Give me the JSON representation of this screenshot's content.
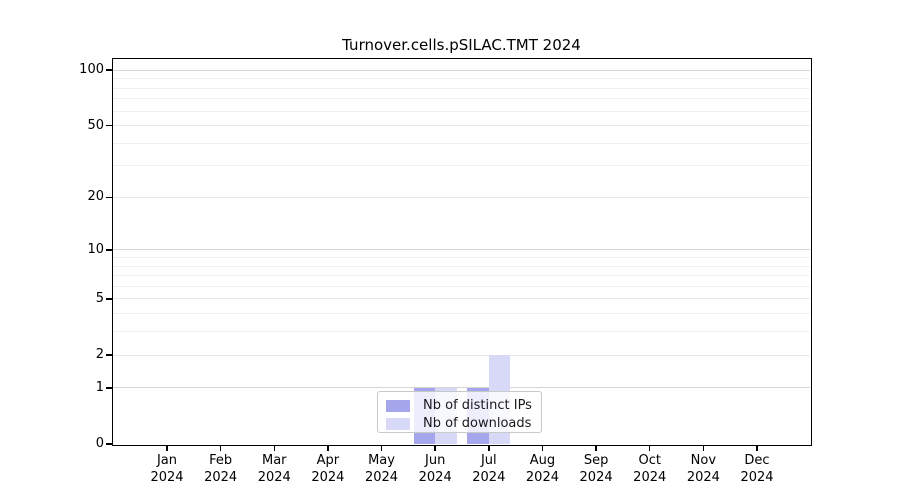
{
  "chart_data": {
    "type": "bar",
    "title": "Turnover.cells.pSILAC.TMT 2024",
    "categories": [
      {
        "month": "Jan",
        "year": "2024"
      },
      {
        "month": "Feb",
        "year": "2024"
      },
      {
        "month": "Mar",
        "year": "2024"
      },
      {
        "month": "Apr",
        "year": "2024"
      },
      {
        "month": "May",
        "year": "2024"
      },
      {
        "month": "Jun",
        "year": "2024"
      },
      {
        "month": "Jul",
        "year": "2024"
      },
      {
        "month": "Aug",
        "year": "2024"
      },
      {
        "month": "Sep",
        "year": "2024"
      },
      {
        "month": "Oct",
        "year": "2024"
      },
      {
        "month": "Nov",
        "year": "2024"
      },
      {
        "month": "Dec",
        "year": "2024"
      }
    ],
    "series": [
      {
        "name": "Nb of distinct IPs",
        "key": "distinct-ips",
        "color": "#a6a6ed",
        "values": [
          0,
          0,
          0,
          0,
          0,
          1,
          1,
          0,
          0,
          0,
          0,
          0
        ]
      },
      {
        "name": "Nb of downloads",
        "key": "downloads",
        "color": "#d8d8f7",
        "values": [
          0,
          0,
          0,
          0,
          0,
          1,
          2,
          0,
          0,
          0,
          0,
          0
        ]
      }
    ],
    "y_scale": "log1p",
    "ylim": [
      0,
      115
    ],
    "y_major_ticks": [
      0,
      1,
      2,
      5,
      10,
      20,
      50,
      100
    ],
    "y_minor_ticks": [
      3,
      4,
      6,
      7,
      8,
      9,
      30,
      40,
      60,
      70,
      80,
      90
    ],
    "grid": "horizontal",
    "legend_position": "lower center"
  }
}
